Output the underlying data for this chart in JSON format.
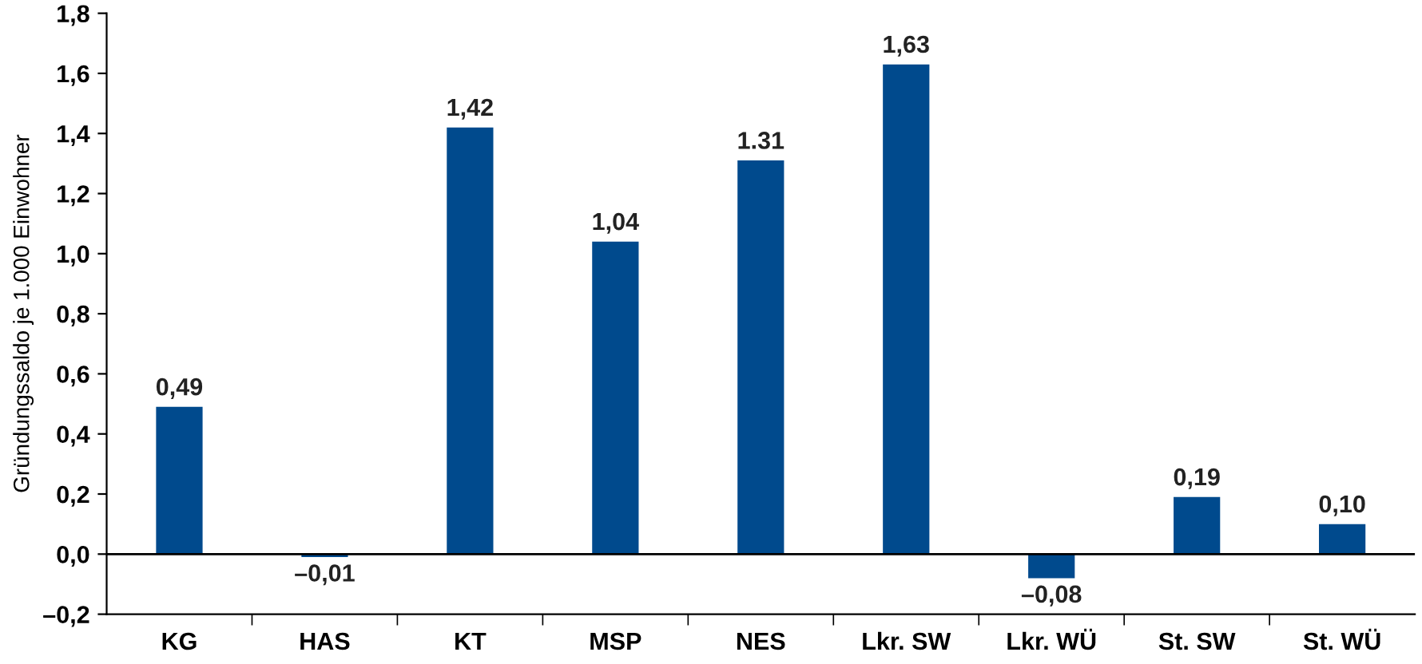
{
  "chart_data": {
    "type": "bar",
    "ylabel": "Gründungssaldo je 1.000 Einwohner",
    "categories": [
      "KG",
      "HAS",
      "KT",
      "MSP",
      "NES",
      "Lkr. SW",
      "Lkr. WÜ",
      "St. SW",
      "St. WÜ"
    ],
    "values": [
      0.49,
      -0.01,
      1.42,
      1.04,
      1.31,
      1.63,
      -0.08,
      0.19,
      0.1
    ],
    "value_labels": [
      "0,49",
      "–0,01",
      "1,42",
      "1,04",
      "1.31",
      "1,63",
      "–0,08",
      "0,19",
      "0,10"
    ],
    "color": "#004a8d",
    "ylim": [
      -0.2,
      1.8
    ],
    "yticks": [
      {
        "value": -0.2,
        "label": "–0,2"
      },
      {
        "value": 0.0,
        "label": "0,0"
      },
      {
        "value": 0.2,
        "label": "0,2"
      },
      {
        "value": 0.4,
        "label": "0,4"
      },
      {
        "value": 0.6,
        "label": "0,6"
      },
      {
        "value": 0.8,
        "label": "0,8"
      },
      {
        "value": 1.0,
        "label": "1,0"
      },
      {
        "value": 1.2,
        "label": "1,2"
      },
      {
        "value": 1.4,
        "label": "1,4"
      },
      {
        "value": 1.6,
        "label": "1,6"
      },
      {
        "value": 1.8,
        "label": "1,8"
      }
    ],
    "ref_lines": [
      {
        "axis": "y",
        "value": 0,
        "color": "#000000"
      }
    ],
    "grid": false,
    "legend": false
  }
}
